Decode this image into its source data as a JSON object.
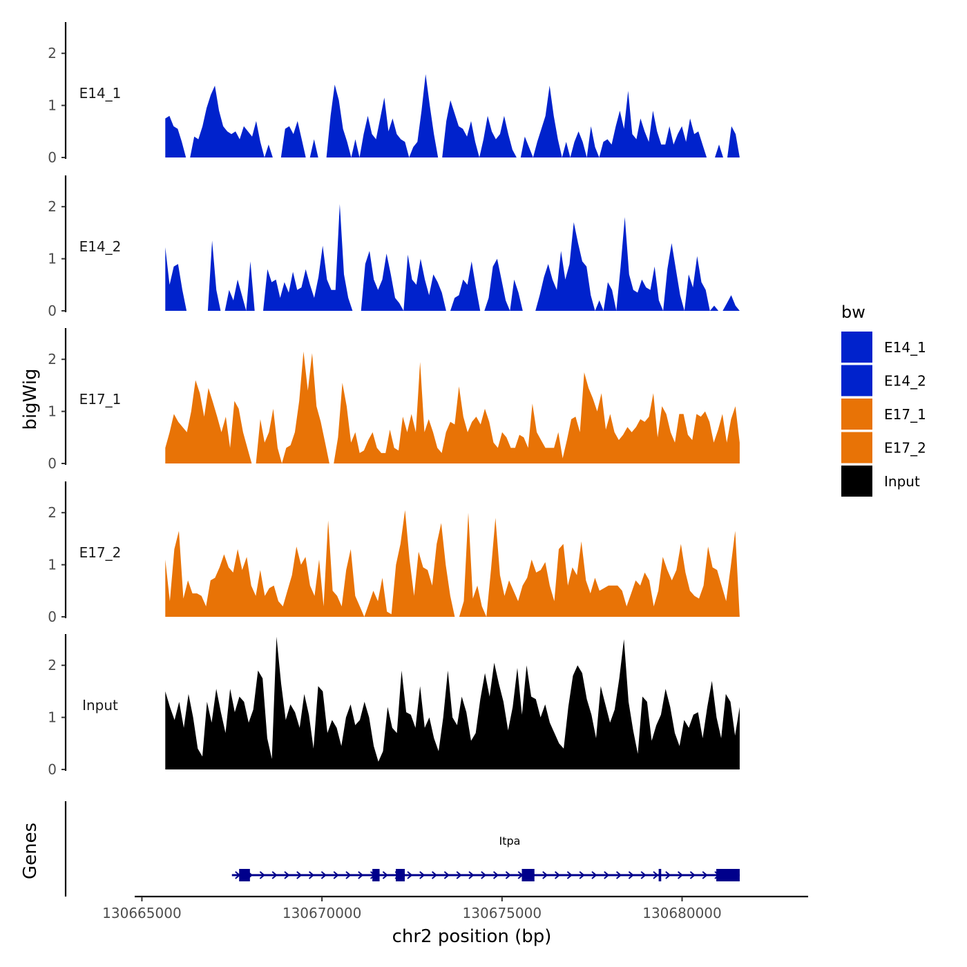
{
  "chart_data": {
    "type": "area",
    "title": "",
    "xlabel": "chr2 position (bp)",
    "ylabel": "bigWig",
    "gene_panel_label": "Genes",
    "xlim": [
      130664800,
      130683500
    ],
    "x_ticks": [
      130665000,
      130670000,
      130675000,
      130680000
    ],
    "x_tick_labels": [
      "130665000",
      "130670000",
      "130675000",
      "130680000"
    ],
    "ylim": [
      0,
      2.6
    ],
    "y_ticks": [
      0,
      1,
      2
    ],
    "y_tick_labels": [
      "0",
      "1",
      "2"
    ],
    "data_range": [
      130665650,
      130681600
    ],
    "legend": {
      "title": "bw",
      "placement": "right",
      "entries": [
        {
          "label": "E14_1",
          "color": "#0022CC"
        },
        {
          "label": "E14_2",
          "color": "#0022CC"
        },
        {
          "label": "E17_1",
          "color": "#E87306"
        },
        {
          "label": "E17_2",
          "color": "#E87306"
        },
        {
          "label": "Input",
          "color": "#000000"
        }
      ]
    },
    "series": [
      {
        "name": "E14_1",
        "color": "#0022CC",
        "values": [
          0.75,
          0.8,
          0.6,
          0.55,
          0.3,
          0,
          0,
          0.4,
          0.35,
          0.6,
          0.95,
          1.2,
          1.38,
          0.9,
          0.6,
          0.5,
          0.45,
          0.5,
          0.35,
          0.6,
          0.5,
          0.4,
          0.7,
          0.3,
          0,
          0.25,
          0,
          0,
          0,
          0.55,
          0.6,
          0.45,
          0.7,
          0.35,
          0,
          0,
          0.35,
          0,
          0,
          0,
          0.8,
          1.4,
          1.1,
          0.55,
          0.3,
          0,
          0.35,
          0,
          0.45,
          0.8,
          0.45,
          0.35,
          0.75,
          1.15,
          0.5,
          0.75,
          0.45,
          0.35,
          0.3,
          0,
          0.2,
          0.3,
          0.9,
          1.6,
          1.0,
          0.45,
          0,
          0,
          0.7,
          1.1,
          0.85,
          0.6,
          0.55,
          0.4,
          0.7,
          0.3,
          0,
          0.35,
          0.8,
          0.5,
          0.35,
          0.45,
          0.8,
          0.45,
          0.15,
          0,
          0,
          0.4,
          0.2,
          0,
          0.3,
          0.55,
          0.8,
          1.38,
          0.8,
          0.35,
          0,
          0.3,
          0,
          0.3,
          0.5,
          0.3,
          0,
          0.6,
          0.2,
          0,
          0.3,
          0.35,
          0.25,
          0.6,
          0.9,
          0.55,
          1.28,
          0.45,
          0.35,
          0.75,
          0.5,
          0.3,
          0.9,
          0.5,
          0.25,
          0.25,
          0.6,
          0.25,
          0.45,
          0.6,
          0.3,
          0.75,
          0.45,
          0.5,
          0.25,
          0,
          0,
          0,
          0.25,
          0,
          0,
          0.6,
          0.45,
          0
        ]
      },
      {
        "name": "E14_2",
        "color": "#0022CC",
        "values": [
          1.22,
          0.5,
          0.85,
          0.9,
          0.4,
          0,
          0,
          0,
          0,
          0,
          0,
          1.35,
          0.4,
          0,
          0,
          0.4,
          0.2,
          0.6,
          0.3,
          0,
          0.95,
          0,
          0,
          0,
          0.8,
          0.55,
          0.6,
          0.25,
          0.55,
          0.35,
          0.75,
          0.4,
          0.45,
          0.8,
          0.5,
          0.25,
          0.65,
          1.25,
          0.6,
          0.4,
          0.4,
          2.05,
          0.7,
          0.25,
          0,
          0,
          0,
          0.9,
          1.15,
          0.6,
          0.4,
          0.6,
          1.1,
          0.7,
          0.25,
          0.15,
          0,
          1.08,
          0.6,
          0.5,
          1.0,
          0.6,
          0.3,
          0.7,
          0.55,
          0.35,
          0,
          0,
          0.25,
          0.3,
          0.6,
          0.5,
          0.95,
          0.45,
          0,
          0,
          0.25,
          0.85,
          1.0,
          0.6,
          0.2,
          0,
          0.6,
          0.35,
          0,
          0,
          0,
          0,
          0.3,
          0.65,
          0.9,
          0.6,
          0.4,
          1.15,
          0.6,
          0.9,
          1.7,
          1.3,
          0.95,
          0.85,
          0.3,
          0,
          0.2,
          0,
          0.55,
          0.4,
          0,
          0.85,
          1.8,
          0.7,
          0.4,
          0.35,
          0.6,
          0.45,
          0.4,
          0.85,
          0.2,
          0,
          0.8,
          1.3,
          0.8,
          0.3,
          0,
          0.7,
          0.45,
          1.05,
          0.55,
          0.4,
          0,
          0.1,
          0,
          0,
          0.15,
          0.3,
          0.1,
          0
        ]
      },
      {
        "name": "E17_1",
        "color": "#E87306",
        "values": [
          0.3,
          0.6,
          0.95,
          0.8,
          0.7,
          0.6,
          1.0,
          1.6,
          1.35,
          0.9,
          1.45,
          1.18,
          0.9,
          0.6,
          0.9,
          0.3,
          1.2,
          1.05,
          0.6,
          0.3,
          0,
          0,
          0.85,
          0.4,
          0.6,
          1.05,
          0.3,
          0,
          0.3,
          0.35,
          0.6,
          1.2,
          2.15,
          1.4,
          2.12,
          1.1,
          0.8,
          0.4,
          0,
          0,
          0.5,
          1.55,
          1.1,
          0.4,
          0.6,
          0.2,
          0.25,
          0.45,
          0.6,
          0.3,
          0.2,
          0.2,
          0.65,
          0.3,
          0.25,
          0.9,
          0.6,
          0.95,
          0.6,
          1.95,
          0.6,
          0.85,
          0.6,
          0.3,
          0.2,
          0.6,
          0.8,
          0.75,
          1.48,
          0.9,
          0.6,
          0.8,
          0.9,
          0.75,
          1.05,
          0.8,
          0.4,
          0.3,
          0.6,
          0.5,
          0.3,
          0.3,
          0.55,
          0.5,
          0.3,
          1.15,
          0.6,
          0.45,
          0.3,
          0.3,
          0.3,
          0.6,
          0.1,
          0.45,
          0.85,
          0.9,
          0.6,
          1.75,
          1.45,
          1.25,
          1.0,
          1.35,
          0.65,
          0.95,
          0.6,
          0.45,
          0.55,
          0.7,
          0.6,
          0.7,
          0.85,
          0.8,
          0.9,
          1.35,
          0.5,
          1.1,
          0.95,
          0.6,
          0.4,
          0.95,
          0.95,
          0.55,
          0.45,
          0.95,
          0.9,
          1.0,
          0.8,
          0.4,
          0.65,
          0.95,
          0.4,
          0.85,
          1.1,
          0.4
        ]
      },
      {
        "name": "E17_2",
        "color": "#E87306",
        "values": [
          1.1,
          0.3,
          1.3,
          1.65,
          0.35,
          0.7,
          0.45,
          0.45,
          0.4,
          0.2,
          0.7,
          0.75,
          0.95,
          1.2,
          0.95,
          0.85,
          1.3,
          0.9,
          1.15,
          0.6,
          0.4,
          0.9,
          0.4,
          0.55,
          0.6,
          0.3,
          0.2,
          0.5,
          0.8,
          1.35,
          1.0,
          1.15,
          0.6,
          0.4,
          1.1,
          0.2,
          1.85,
          0.5,
          0.4,
          0.2,
          0.9,
          1.3,
          0.4,
          0.2,
          0,
          0.25,
          0.5,
          0.3,
          0.75,
          0.1,
          0.05,
          1.0,
          1.4,
          2.05,
          1.1,
          0.4,
          1.25,
          0.95,
          0.9,
          0.6,
          1.4,
          1.8,
          1.0,
          0.4,
          0,
          0,
          0.3,
          2.0,
          0.35,
          0.6,
          0.2,
          0,
          0.9,
          1.9,
          0.8,
          0.4,
          0.7,
          0.5,
          0.3,
          0.6,
          0.75,
          1.1,
          0.85,
          0.9,
          1.05,
          0.6,
          0.3,
          1.3,
          1.4,
          0.6,
          0.95,
          0.8,
          1.45,
          0.7,
          0.45,
          0.75,
          0.5,
          0.55,
          0.6,
          0.6,
          0.6,
          0.5,
          0.2,
          0.45,
          0.7,
          0.6,
          0.85,
          0.7,
          0.2,
          0.5,
          1.15,
          0.9,
          0.7,
          0.9,
          1.4,
          0.85,
          0.5,
          0.4,
          0.35,
          0.6,
          1.35,
          0.95,
          0.9,
          0.6,
          0.3,
          0.95,
          1.65,
          0
        ]
      },
      {
        "name": "Input",
        "color": "#000000",
        "values": [
          1.5,
          1.2,
          0.95,
          1.3,
          0.8,
          1.45,
          1.0,
          0.4,
          0.25,
          1.3,
          0.9,
          1.55,
          1.1,
          0.7,
          1.55,
          1.1,
          1.4,
          1.3,
          0.9,
          1.15,
          1.9,
          1.75,
          0.6,
          0.2,
          2.55,
          1.65,
          0.95,
          1.25,
          1.1,
          0.8,
          1.45,
          1.05,
          0.4,
          1.6,
          1.5,
          0.7,
          0.95,
          0.8,
          0.45,
          1.0,
          1.25,
          0.85,
          0.95,
          1.3,
          1.0,
          0.45,
          0.15,
          0.35,
          1.2,
          0.8,
          0.7,
          1.9,
          1.1,
          1.05,
          0.8,
          1.6,
          0.8,
          1.0,
          0.6,
          0.35,
          1.0,
          1.9,
          1.0,
          0.85,
          1.4,
          1.1,
          0.55,
          0.7,
          1.35,
          1.85,
          1.4,
          2.05,
          1.65,
          1.3,
          0.75,
          1.2,
          1.95,
          1.05,
          2.0,
          1.4,
          1.35,
          1.0,
          1.25,
          0.9,
          0.7,
          0.5,
          0.4,
          1.2,
          1.8,
          2.0,
          1.85,
          1.35,
          1.05,
          0.6,
          1.6,
          1.25,
          0.9,
          1.15,
          1.75,
          2.5,
          1.3,
          0.75,
          0.3,
          1.4,
          1.3,
          0.55,
          0.85,
          1.05,
          1.55,
          1.2,
          0.7,
          0.45,
          0.95,
          0.8,
          1.05,
          1.1,
          0.6,
          1.2,
          1.7,
          1.0,
          0.6,
          1.45,
          1.3,
          0.65,
          1.2
        ]
      }
    ],
    "gene": {
      "name": "Itpa",
      "color": "#00008B",
      "start": 130667500,
      "end": 130681600,
      "strand": "+",
      "exons": [
        [
          130667700,
          130668000
        ],
        [
          130671400,
          130671600
        ],
        [
          130672050,
          130672300
        ],
        [
          130675550,
          130675900
        ],
        [
          130679350,
          130679420
        ],
        [
          130680950,
          130681600
        ]
      ]
    }
  }
}
